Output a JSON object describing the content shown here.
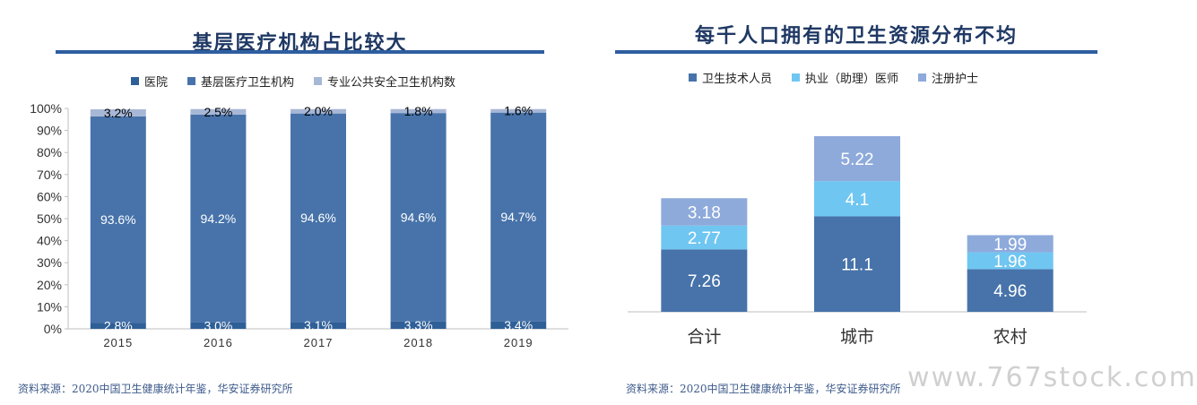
{
  "left": {
    "title": "基层医疗机构占比较大",
    "source": "资料来源：2020中国卫生健康统计年鉴，华安证券研究所"
  },
  "right": {
    "title": "每千人口拥有的卫生资源分布不均",
    "source": "资料来源：2020中国卫生健康统计年鉴，华安证券研究所"
  },
  "watermark": "www.767stock.com",
  "colors": {
    "dark": "#2f5f97",
    "mid": "#4773aa",
    "light": "#a7b7d6",
    "cyan": "#6fc6f1",
    "lav": "#8eaadb",
    "title": "#1f3864"
  },
  "chart_data": [
    {
      "type": "bar",
      "stacked": "100%",
      "title": "基层医疗机构占比较大",
      "categories": [
        "2015",
        "2016",
        "2017",
        "2018",
        "2019"
      ],
      "series": [
        {
          "name": "医院",
          "values": [
            2.8,
            3.0,
            3.1,
            3.3,
            3.4
          ],
          "labels": [
            "2.8%",
            "3.0%",
            "3.1%",
            "3.3%",
            "3.4%"
          ]
        },
        {
          "name": "基层医疗卫生机构",
          "values": [
            93.6,
            94.2,
            94.6,
            94.6,
            94.7
          ],
          "labels": [
            "93.6%",
            "94.2%",
            "94.6%",
            "94.6%",
            "94.7%"
          ]
        },
        {
          "name": "专业公共安全卫生机构数",
          "values": [
            3.2,
            2.5,
            2.0,
            1.8,
            1.6
          ],
          "labels": [
            "3.2%",
            "2.5%",
            "2.0%",
            "1.8%",
            "1.6%"
          ]
        }
      ],
      "ylim": [
        0,
        100
      ],
      "yticks": [
        "0%",
        "10%",
        "20%",
        "30%",
        "40%",
        "50%",
        "60%",
        "70%",
        "80%",
        "90%",
        "100%"
      ],
      "legend": "top",
      "grid": false
    },
    {
      "type": "bar",
      "stacked": true,
      "title": "每千人口拥有的卫生资源分布不均",
      "categories": [
        "合计",
        "城市",
        "农村"
      ],
      "series": [
        {
          "name": "卫生技术人员",
          "values": [
            7.26,
            11.1,
            4.96
          ],
          "labels": [
            "7.26",
            "11.1",
            "4.96"
          ]
        },
        {
          "name": "执业（助理）医师",
          "values": [
            2.77,
            4.1,
            1.96
          ],
          "labels": [
            "2.77",
            "4.1",
            "1.96"
          ]
        },
        {
          "name": "注册护士",
          "values": [
            3.18,
            5.22,
            1.99
          ],
          "labels": [
            "3.18",
            "5.22",
            "1.99"
          ]
        }
      ],
      "legend": "top",
      "grid": false
    }
  ]
}
